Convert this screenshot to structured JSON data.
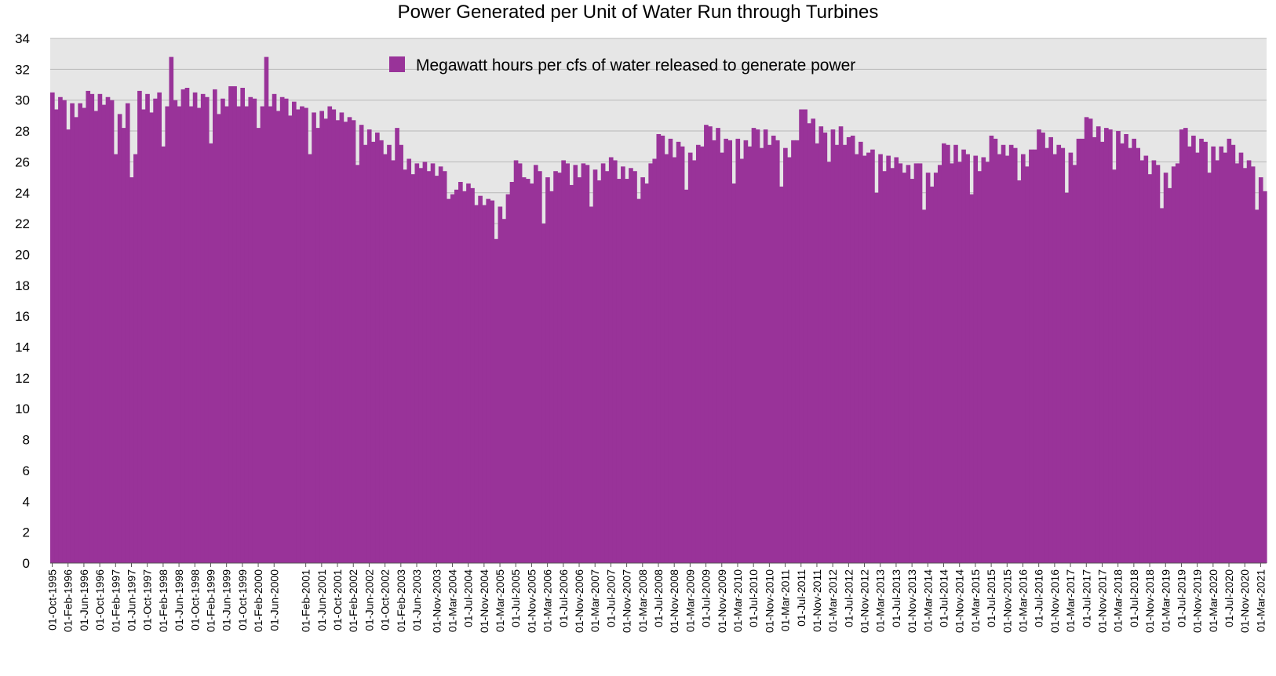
{
  "chart_data": {
    "type": "bar",
    "title": "Power Generated per Unit of Water Run through Turbines",
    "xlabel": "",
    "ylabel": "",
    "ylim": [
      0,
      34
    ],
    "yticks": [
      0,
      2,
      4,
      6,
      8,
      10,
      12,
      14,
      16,
      18,
      20,
      22,
      24,
      26,
      28,
      30,
      32,
      34
    ],
    "grid": true,
    "plot_background": "#e6e6e6",
    "bar_color": "#993399",
    "legend_position": "top-center",
    "start_month": "1995-10",
    "tick_labels": [
      "01-Oct-1995",
      "01-Feb-1996",
      "01-Jun-1996",
      "01-Oct-1996",
      "01-Feb-1997",
      "01-Jun-1997",
      "01-Oct-1997",
      "01-Feb-1998",
      "01-Jun-1998",
      "01-Oct-1998",
      "01-Feb-1999",
      "01-Jun-1999",
      "01-Oct-1999",
      "01-Feb-2000",
      "01-Jun-2000",
      "01-Feb-2001",
      "01-Jun-2001",
      "01-Oct-2001",
      "01-Feb-2002",
      "01-Jun-2002",
      "01-Oct-2002",
      "01-Feb-2003",
      "01-Jun-2003",
      "01-Nov-2003",
      "01-Mar-2004",
      "01-Jul-2004",
      "01-Nov-2004",
      "01-Mar-2005",
      "01-Jul-2005",
      "01-Nov-2005",
      "01-Mar-2006",
      "01-Jul-2006",
      "01-Nov-2006",
      "01-Mar-2007",
      "01-Jul-2007",
      "01-Nov-2007",
      "01-Mar-2008",
      "01-Jul-2008",
      "01-Nov-2008",
      "01-Mar-2009",
      "01-Jul-2009",
      "01-Nov-2009",
      "01-Mar-2010",
      "01-Jul-2010",
      "01-Nov-2010",
      "01-Mar-2011",
      "01-Jul-2011",
      "01-Nov-2011",
      "01-Mar-2012",
      "01-Jul-2012",
      "01-Nov-2012",
      "01-Mar-2013",
      "01-Jul-2013",
      "01-Nov-2013",
      "01-Mar-2014",
      "01-Jul-2014",
      "01-Nov-2014",
      "01-Mar-2015",
      "01-Jul-2015",
      "01-Nov-2015",
      "01-Mar-2016",
      "01-Jul-2016",
      "01-Nov-2016",
      "01-Mar-2017",
      "01-Jul-2017",
      "01-Nov-2017",
      "01-Mar-2018",
      "01-Jul-2018",
      "01-Nov-2018",
      "01-Mar-2019",
      "01-Jul-2019",
      "01-Nov-2019",
      "01-Mar-2020",
      "01-Jul-2020",
      "01-Nov-2020",
      "01-Mar-2021"
    ],
    "series": [
      {
        "name": "Megawatt hours per cfs of water released to generate power",
        "values": [
          30.5,
          29.4,
          30.2,
          30.0,
          28.1,
          29.8,
          28.9,
          29.8,
          29.5,
          30.6,
          30.4,
          29.3,
          30.4,
          29.7,
          30.2,
          30.0,
          26.5,
          29.1,
          28.2,
          29.8,
          25.0,
          26.5,
          30.6,
          29.4,
          30.4,
          29.2,
          30.1,
          30.5,
          27.0,
          29.6,
          32.8,
          30.0,
          29.6,
          30.7,
          30.8,
          29.6,
          30.5,
          29.5,
          30.4,
          30.2,
          27.2,
          30.7,
          29.1,
          30.1,
          29.6,
          30.9,
          30.9,
          29.6,
          30.8,
          29.6,
          30.2,
          30.1,
          28.2,
          29.6,
          32.8,
          29.6,
          30.4,
          29.3,
          30.2,
          30.1,
          29.0,
          29.9,
          29.4,
          29.6,
          29.5,
          26.5,
          29.2,
          28.2,
          29.3,
          28.8,
          29.6,
          29.4,
          28.7,
          29.2,
          28.6,
          28.9,
          28.7,
          25.8,
          28.4,
          27.1,
          28.1,
          27.3,
          27.9,
          27.4,
          26.5,
          27.1,
          26.1,
          28.2,
          27.1,
          25.5,
          26.2,
          25.2,
          25.9,
          25.6,
          26.0,
          25.4,
          25.9,
          25.1,
          25.7,
          25.4,
          23.6,
          23.9,
          24.2,
          24.7,
          24.1,
          24.6,
          24.3,
          23.2,
          23.8,
          23.2,
          23.6,
          23.5,
          21.0,
          23.1,
          22.3,
          23.9,
          24.7,
          26.1,
          25.9,
          25.0,
          24.9,
          24.6,
          25.8,
          25.4,
          22.0,
          25.0,
          24.1,
          25.4,
          25.3,
          26.1,
          25.9,
          24.5,
          25.8,
          25.0,
          25.9,
          25.8,
          23.1,
          25.5,
          24.8,
          25.9,
          25.4,
          26.3,
          26.1,
          24.9,
          25.7,
          24.9,
          25.6,
          25.4,
          23.6,
          25.0,
          24.6,
          25.9,
          26.2,
          27.8,
          27.7,
          26.5,
          27.5,
          26.3,
          27.3,
          27.0,
          24.2,
          26.6,
          26.1,
          27.1,
          27.0,
          28.4,
          28.3,
          27.4,
          28.2,
          26.6,
          27.5,
          27.4,
          24.6,
          27.5,
          26.2,
          27.4,
          27.0,
          28.2,
          28.1,
          26.9,
          28.1,
          27.1,
          27.7,
          27.4,
          24.4,
          26.9,
          26.3,
          27.4,
          27.4,
          29.4,
          29.4,
          28.5,
          28.8,
          27.2,
          28.3,
          27.9,
          26.0,
          28.1,
          27.1,
          28.3,
          27.1,
          27.6,
          27.7,
          26.5,
          27.3,
          26.4,
          26.6,
          26.8,
          24.0,
          26.5,
          25.4,
          26.4,
          25.6,
          26.3,
          25.9,
          25.3,
          25.8,
          24.9,
          25.9,
          25.9,
          22.9,
          25.3,
          24.4,
          25.3,
          25.8,
          27.2,
          27.1,
          25.9,
          27.1,
          26.0,
          26.8,
          26.5,
          23.9,
          26.4,
          25.4,
          26.3,
          26.0,
          27.7,
          27.5,
          26.5,
          27.1,
          26.4,
          27.1,
          26.9,
          24.8,
          26.5,
          25.7,
          26.8,
          26.8,
          28.1,
          27.9,
          26.9,
          27.6,
          26.5,
          27.1,
          26.9,
          24.0,
          26.6,
          25.8,
          27.5,
          27.5,
          28.9,
          28.8,
          27.6,
          28.3,
          27.3,
          28.2,
          28.1,
          25.5,
          28.0,
          27.2,
          27.8,
          26.9,
          27.5,
          26.9,
          26.1,
          26.4,
          25.2,
          26.1,
          25.8,
          23.0,
          25.3,
          24.3,
          25.7,
          25.9,
          28.1,
          28.2,
          27.0,
          27.7,
          26.6,
          27.5,
          27.3,
          25.3,
          27.0,
          26.1,
          27.0,
          26.6,
          27.5,
          27.1,
          25.9,
          26.6,
          25.6,
          26.1,
          25.7,
          22.9,
          25.0,
          24.1
        ]
      }
    ]
  }
}
